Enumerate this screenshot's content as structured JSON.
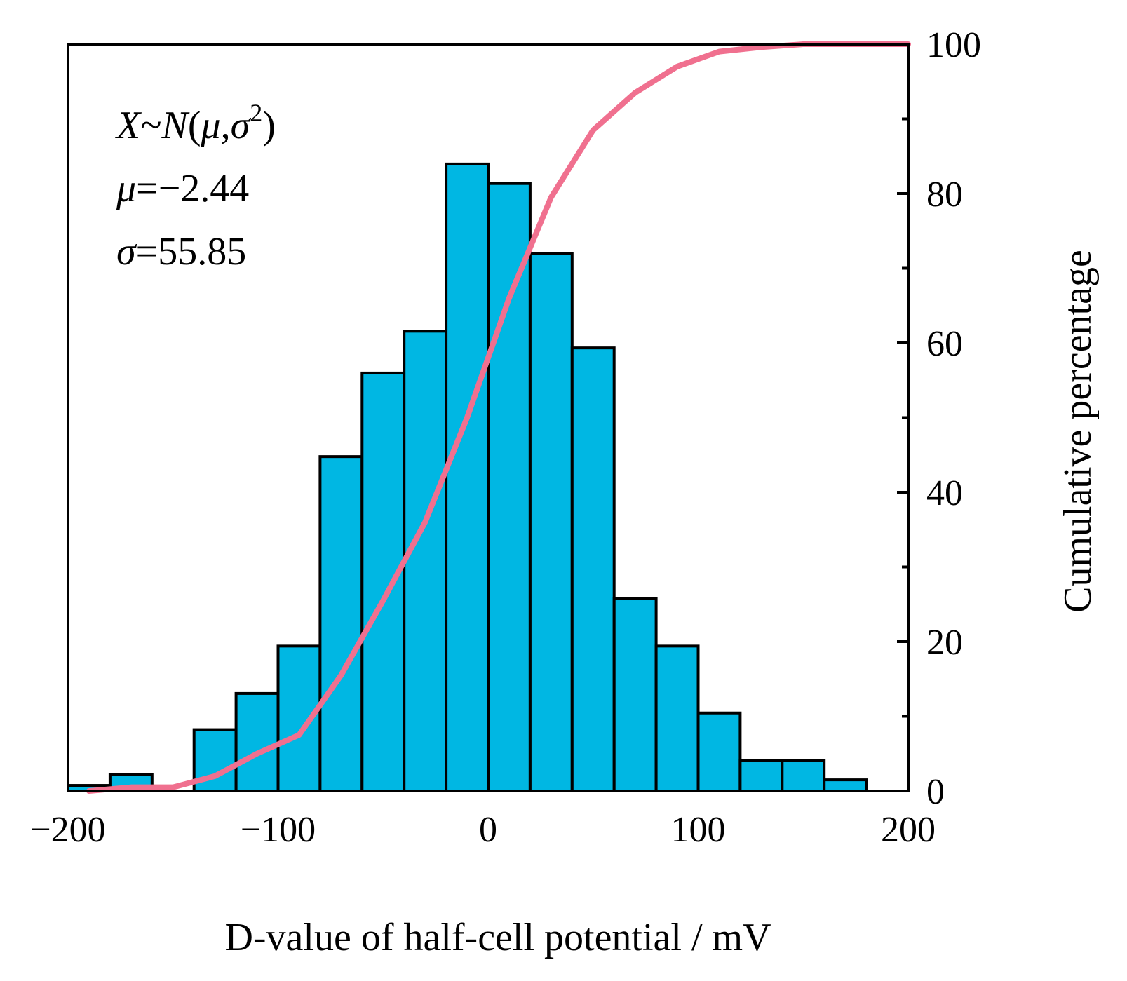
{
  "chart_data": {
    "type": "bar",
    "xlabel": "D-value of half-cell potential / mV",
    "y2label": "Cumulative percentage",
    "xlim": [
      -200,
      200
    ],
    "xticks": [
      "−200",
      "−100",
      "0",
      "100",
      "200"
    ],
    "y2lim": [
      0,
      100
    ],
    "y2ticks": [
      "0",
      "20",
      "40",
      "60",
      "80",
      "100"
    ],
    "histogram": {
      "bin_width": 20,
      "bin_starts": [
        -200,
        -180,
        -160,
        -140,
        -120,
        -100,
        -80,
        -60,
        -40,
        -20,
        0,
        20,
        40,
        60,
        80,
        100,
        120,
        140,
        160
      ],
      "values": [
        1,
        3,
        0,
        11,
        17.5,
        26,
        60,
        75,
        82.5,
        112.5,
        109,
        96.5,
        79.5,
        34.5,
        26,
        14,
        5.5,
        5.5,
        2
      ],
      "ylim": [
        0,
        134
      ],
      "color": "#00b7e3"
    },
    "cumulative_line": {
      "x": [
        -190,
        -170,
        -150,
        -130,
        -110,
        -90,
        -70,
        -50,
        -30,
        -10,
        10,
        30,
        50,
        70,
        90,
        110,
        130,
        150,
        170,
        190,
        200
      ],
      "y": [
        0,
        0.5,
        0.5,
        2,
        5,
        7.5,
        15.5,
        25.5,
        36,
        50,
        66,
        79.5,
        88.5,
        93.5,
        97,
        99,
        99.6,
        100,
        100,
        100,
        100
      ],
      "color": "#f0708f"
    },
    "annotations": {
      "line1_a": "X",
      "line1_b": "~",
      "line1_c": "N",
      "line1_d": "(",
      "line1_e": "μ",
      "line1_f": ",",
      "line1_g": "σ",
      "line1_sup": "2",
      "line1_h": ")",
      "line2_sym": "μ",
      "line2_val": "=−2.44",
      "line3_sym": "σ",
      "line3_val": "=55.85"
    }
  }
}
